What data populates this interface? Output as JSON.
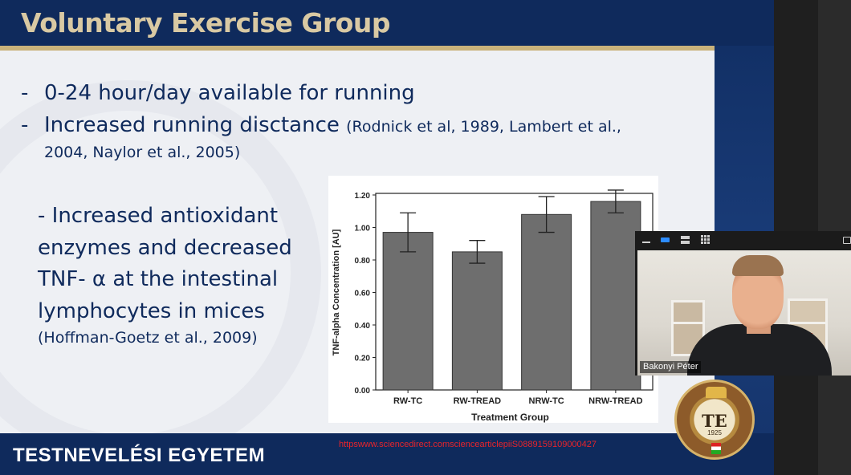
{
  "slide": {
    "title": "Voluntary Exercise Group",
    "bullets": [
      {
        "dash": "-",
        "text": "0-24 hour/day available for running",
        "citation": ""
      },
      {
        "dash": "-",
        "text": "Increased running disctance",
        "citation": "(Rodnick et al, 1989, Lambert et al.,",
        "citation_cont": "2004, Naylor et al., 2005)"
      }
    ],
    "finding": {
      "lines": [
        "- Increased antioxidant",
        "enzymes and decreased",
        "TNF- α  at the intestinal",
        "lymphocytes  in mices"
      ],
      "citation": "(Hoffman-Goetz et al., 2009)"
    },
    "footer": {
      "institution": "TESTNEVELÉSI EGYETEM",
      "source_link": "httpswww.sciencedirect.comsciencearticlepiiS0889159109000427"
    },
    "seal": {
      "letters": "TE",
      "year": "1925"
    }
  },
  "chart_data": {
    "type": "bar",
    "categories": [
      "RW-TC",
      "RW-TREAD",
      "NRW-TC",
      "NRW-TREAD"
    ],
    "values": [
      0.97,
      0.85,
      1.08,
      1.16
    ],
    "error_low": [
      0.85,
      0.78,
      0.97,
      1.09
    ],
    "error_high": [
      1.09,
      0.92,
      1.19,
      1.23
    ],
    "xlabel": "Treatment Group",
    "ylabel": "TNF-alpha Concentration [AU]",
    "ylim": [
      0,
      1.2
    ],
    "yticks": [
      "0.00",
      "0.20",
      "0.40",
      "0.60",
      "0.80",
      "1.00",
      "1.20"
    ],
    "grid": false,
    "bar_color": "#6e6e6e"
  },
  "video_call": {
    "participant_name": "Bakonyi Péter",
    "toolbar_icons": [
      "minimize-icon",
      "speaker-view-icon",
      "stacked-view-icon",
      "gallery-grid-icon",
      "share-icon"
    ],
    "accent_color": "#2d8cff"
  }
}
